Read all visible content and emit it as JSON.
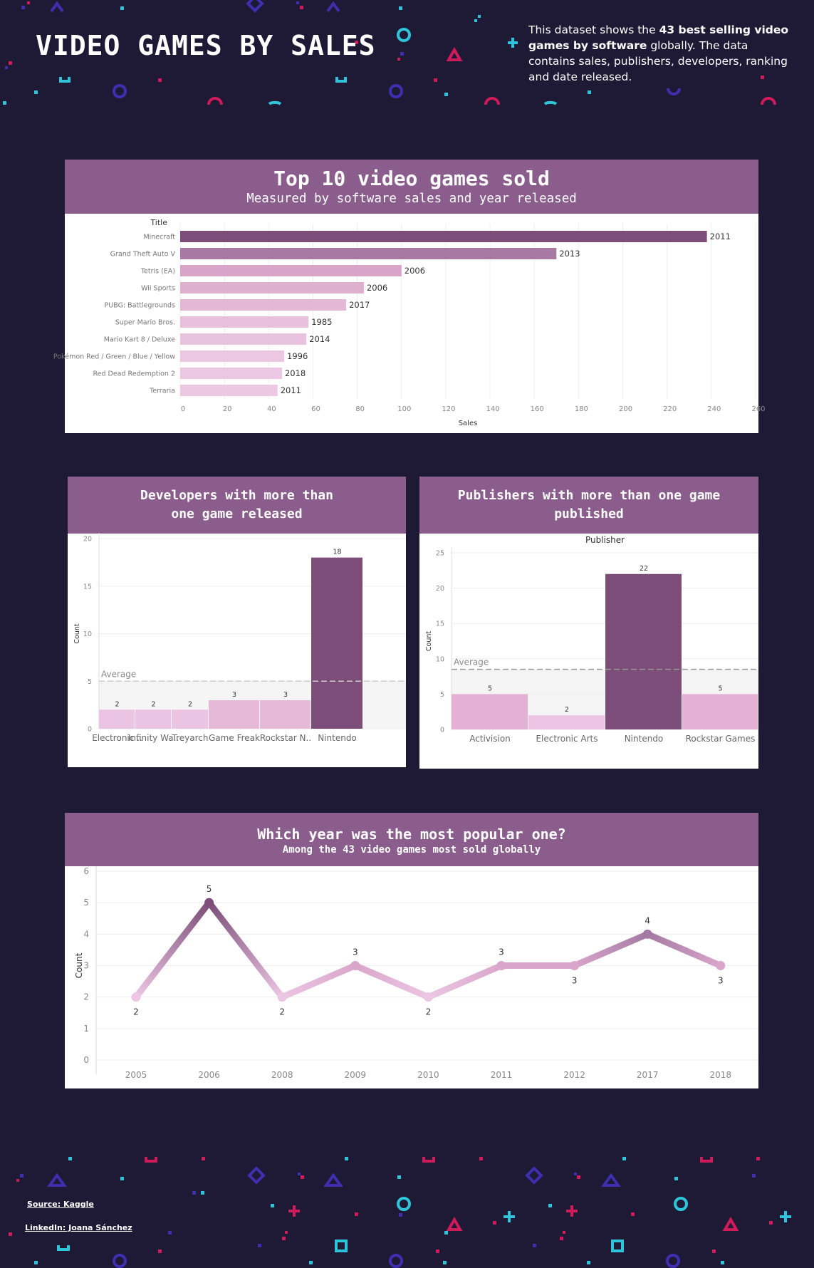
{
  "header": {
    "title": "VIDEO GAMES BY SALES",
    "desc_pre": "This dataset shows the ",
    "desc_bold": "43 best selling video games by software",
    "desc_post": " globally. The data contains sales, publishers, developers, ranking and date released."
  },
  "colors": {
    "background": "#1e1a36",
    "panel_header": "#8a5d8c",
    "deco_pink": "#d11a5a",
    "deco_cyan": "#2ec4d9",
    "deco_purple": "#3f2fb0"
  },
  "footer": {
    "source": "Source: Kaggle",
    "linkedin": "LinkedIn: Joana Sánchez"
  },
  "chart_data": [
    {
      "type": "bar",
      "orientation": "horizontal",
      "title": "Top 10 video games sold",
      "subtitle": "Measured by software sales and year released",
      "ylabel": "Title",
      "xlabel": "Sales",
      "xlim": [
        0,
        260
      ],
      "ticks": [
        0,
        20,
        40,
        60,
        80,
        100,
        120,
        140,
        160,
        180,
        200,
        220,
        240,
        260
      ],
      "categories": [
        "Minecraft",
        "Grand Theft Auto V",
        "Tetris (EA)",
        "Wii Sports",
        "PUBG: Battlegrounds",
        "Super Mario Bros.",
        "Mario Kart 8 / Deluxe",
        "Pokémon Red / Green / Blue / Yellow",
        "Red Dead Redemption 2",
        "Terraria"
      ],
      "values": [
        238,
        170,
        100,
        83,
        75,
        58,
        57,
        47,
        46,
        44
      ],
      "labels": [
        "2011",
        "2013",
        "2006",
        "2006",
        "2017",
        "1985",
        "2014",
        "1996",
        "2018",
        "2011"
      ]
    },
    {
      "type": "bar",
      "title": "Developers with more than one game released",
      "ylabel": "Count",
      "ylim": [
        0,
        20
      ],
      "ticks": [
        0,
        5,
        10,
        15,
        20
      ],
      "average": 5,
      "average_label": "Average",
      "categories": [
        "Electronic ..",
        "Infinity Wa..",
        "Treyarch",
        "Game Freak",
        "Rockstar N..",
        "Nintendo"
      ],
      "values": [
        2,
        2,
        2,
        3,
        3,
        18
      ],
      "labels": [
        "2",
        "2",
        "2",
        "3",
        "3",
        "18"
      ]
    },
    {
      "type": "bar",
      "title": "Publishers with more than one game published",
      "xlabel_top": "Publisher",
      "ylabel": "Count",
      "ylim": [
        0,
        25
      ],
      "ticks": [
        0,
        5,
        10,
        15,
        20,
        25
      ],
      "average": 8.5,
      "average_label": "Average",
      "categories": [
        "Activision",
        "Electronic Arts",
        "Nintendo",
        "Rockstar Games"
      ],
      "values": [
        5,
        2,
        22,
        5
      ],
      "labels": [
        "5",
        "2",
        "22",
        "5"
      ]
    },
    {
      "type": "line",
      "title": "Which year was the most popular one?",
      "subtitle": "Among the 43 video games most sold globally",
      "ylabel": "Count",
      "ylim": [
        0,
        6
      ],
      "ticks": [
        0,
        1,
        2,
        3,
        4,
        5,
        6
      ],
      "categories": [
        "2005",
        "2006",
        "2008",
        "2009",
        "2010",
        "2011",
        "2012",
        "2017",
        "2018"
      ],
      "values": [
        2,
        5,
        2,
        3,
        2,
        3,
        3,
        4,
        3
      ],
      "labels": [
        "2",
        "5",
        "2",
        "3",
        "2",
        "3",
        "3",
        "4",
        "3"
      ]
    }
  ]
}
